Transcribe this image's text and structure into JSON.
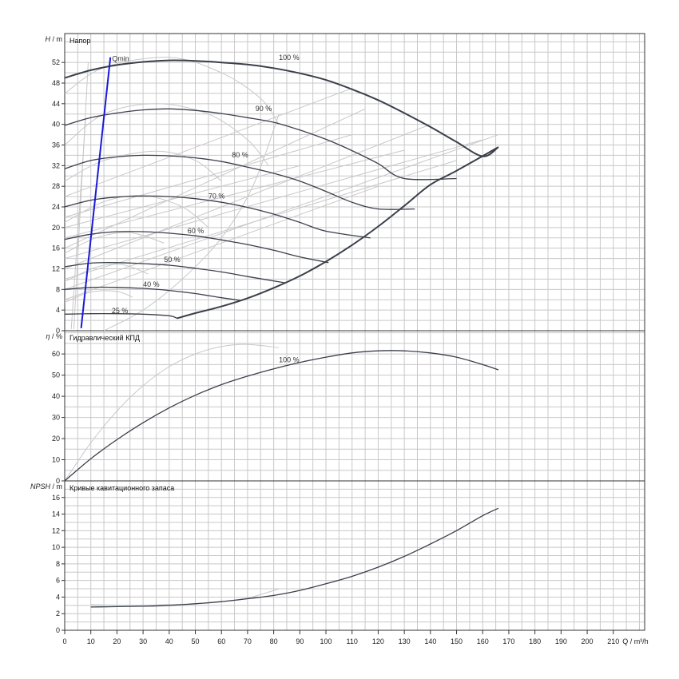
{
  "chart_data": {
    "type": "line",
    "x_axis": {
      "label": "Q / m³/h",
      "ticks": [
        0,
        10,
        20,
        30,
        40,
        50,
        60,
        70,
        80,
        90,
        100,
        110,
        120,
        130,
        140,
        150,
        160,
        170,
        180,
        190,
        200,
        210
      ],
      "xlim": [
        0,
        222
      ]
    },
    "panels": [
      {
        "id": "head",
        "title": "Напор",
        "ylabel": "H / m",
        "ylabel_symbol": "H",
        "ylabel_unit": "/ m",
        "ylim": [
          0,
          57.6
        ],
        "yticks": [
          0,
          4,
          8,
          12,
          16,
          20,
          24,
          28,
          32,
          36,
          40,
          44,
          48,
          52
        ],
        "series": [
          {
            "name": "100 %",
            "label_at": [
              82,
              52.5
            ],
            "points": [
              [
                0,
                49
              ],
              [
                10,
                50.5
              ],
              [
                20,
                51.5
              ],
              [
                30,
                52.1
              ],
              [
                40,
                52.4
              ],
              [
                50,
                52.3
              ],
              [
                60,
                52.0
              ],
              [
                70,
                51.6
              ],
              [
                80,
                50.9
              ],
              [
                90,
                49.9
              ],
              [
                100,
                48.6
              ],
              [
                110,
                46.8
              ],
              [
                120,
                44.7
              ],
              [
                130,
                42.2
              ],
              [
                140,
                39.5
              ],
              [
                150,
                36.6
              ],
              [
                160,
                33.8
              ],
              [
                166,
                35.6
              ]
            ]
          },
          {
            "name": "90 %",
            "label_at": [
              73,
              42.6
            ],
            "points": [
              [
                0,
                39.8
              ],
              [
                10,
                41.3
              ],
              [
                20,
                42.2
              ],
              [
                30,
                42.8
              ],
              [
                40,
                43.0
              ],
              [
                50,
                42.7
              ],
              [
                60,
                42.1
              ],
              [
                70,
                41.3
              ],
              [
                80,
                40.4
              ],
              [
                90,
                38.9
              ],
              [
                100,
                37.1
              ],
              [
                110,
                34.9
              ],
              [
                120,
                32.4
              ],
              [
                130,
                29.5
              ],
              [
                150,
                29.5
              ]
            ]
          },
          {
            "name": "80 %",
            "label_at": [
              64,
              33.6
            ],
            "points": [
              [
                0,
                31.4
              ],
              [
                10,
                33.0
              ],
              [
                20,
                33.7
              ],
              [
                30,
                34.0
              ],
              [
                40,
                33.9
              ],
              [
                50,
                33.5
              ],
              [
                60,
                32.8
              ],
              [
                70,
                31.7
              ],
              [
                80,
                30.5
              ],
              [
                90,
                29.0
              ],
              [
                100,
                27.0
              ],
              [
                110,
                24.9
              ],
              [
                120,
                23.6
              ],
              [
                134,
                23.6
              ]
            ]
          },
          {
            "name": "70 %",
            "label_at": [
              55,
              25.6
            ],
            "points": [
              [
                0,
                24.0
              ],
              [
                10,
                25.3
              ],
              [
                20,
                25.9
              ],
              [
                30,
                26.1
              ],
              [
                40,
                26.0
              ],
              [
                50,
                25.6
              ],
              [
                60,
                24.9
              ],
              [
                70,
                23.9
              ],
              [
                80,
                22.6
              ],
              [
                90,
                21.0
              ],
              [
                100,
                19.3
              ],
              [
                117,
                18.0
              ]
            ]
          },
          {
            "name": "60 %",
            "label_at": [
              47,
              18.9
            ],
            "points": [
              [
                0,
                17.7
              ],
              [
                10,
                18.7
              ],
              [
                20,
                19.2
              ],
              [
                30,
                19.2
              ],
              [
                40,
                18.9
              ],
              [
                50,
                18.4
              ],
              [
                60,
                17.6
              ],
              [
                70,
                16.7
              ],
              [
                80,
                15.6
              ],
              [
                90,
                14.3
              ],
              [
                101,
                13.2
              ]
            ]
          },
          {
            "name": "50 %",
            "label_at": [
              38,
              13.3
            ],
            "points": [
              [
                0,
                12.4
              ],
              [
                10,
                13.1
              ],
              [
                20,
                13.2
              ],
              [
                30,
                13.0
              ],
              [
                40,
                12.7
              ],
              [
                50,
                12.1
              ],
              [
                60,
                11.4
              ],
              [
                70,
                10.5
              ],
              [
                84,
                9.3
              ]
            ]
          },
          {
            "name": "40 %",
            "label_at": [
              30,
              8.5
            ],
            "points": [
              [
                0,
                8.0
              ],
              [
                10,
                8.4
              ],
              [
                20,
                8.4
              ],
              [
                30,
                8.2
              ],
              [
                40,
                7.8
              ],
              [
                50,
                7.2
              ],
              [
                60,
                6.4
              ],
              [
                67,
                5.9
              ]
            ]
          },
          {
            "name": "25 %",
            "label_at": [
              18,
              3.4
            ],
            "points": [
              [
                0,
                3.2
              ],
              [
                10,
                3.3
              ],
              [
                20,
                3.3
              ],
              [
                30,
                3.2
              ],
              [
                40,
                2.9
              ],
              [
                43,
                2.4
              ]
            ]
          },
          {
            "name": "",
            "points": [
              [
                43,
                2.4
              ],
              [
                50,
                3.4
              ],
              [
                60,
                4.7
              ],
              [
                70,
                6.3
              ],
              [
                80,
                8.3
              ],
              [
                90,
                10.6
              ],
              [
                100,
                13.4
              ],
              [
                110,
                16.6
              ],
              [
                120,
                20.2
              ],
              [
                130,
                24.2
              ],
              [
                140,
                28.3
              ],
              [
                150,
                31.0
              ],
              [
                166,
                35.6
              ]
            ]
          }
        ],
        "qmin": {
          "label": "Qmin",
          "points": [
            [
              6.3,
              0.5
            ],
            [
              17.5,
              53.0
            ]
          ]
        }
      },
      {
        "id": "eff",
        "title": "Гидравлический КПД",
        "ylabel": "η / %",
        "ylabel_symbol": "η",
        "ylabel_unit": "/ %",
        "ylim": [
          0,
          71
        ],
        "yticks": [
          0,
          10,
          20,
          30,
          40,
          50,
          60
        ],
        "series": [
          {
            "name": "100 %",
            "label_at": [
              82,
              56
            ],
            "points": [
              [
                0,
                0
              ],
              [
                10,
                10.5
              ],
              [
                20,
                19.5
              ],
              [
                30,
                27.5
              ],
              [
                40,
                34.5
              ],
              [
                50,
                40.5
              ],
              [
                60,
                45.5
              ],
              [
                70,
                49.5
              ],
              [
                80,
                53
              ],
              [
                90,
                56
              ],
              [
                100,
                58.5
              ],
              [
                110,
                60.5
              ],
              [
                120,
                61.5
              ],
              [
                130,
                61.5
              ],
              [
                140,
                60.5
              ],
              [
                150,
                58.5
              ],
              [
                160,
                55
              ],
              [
                166,
                52.5
              ]
            ]
          }
        ]
      },
      {
        "id": "npsh",
        "title": "Кривые кавитационного запаса",
        "ylabel": "NPSH / m",
        "ylabel_symbol": "NPSH",
        "ylabel_unit": "/ m",
        "ylim": [
          0,
          18
        ],
        "yticks": [
          0,
          2,
          4,
          6,
          8,
          10,
          12,
          14,
          16
        ],
        "series": [
          {
            "name": "",
            "points": [
              [
                10,
                2.8
              ],
              [
                20,
                2.85
              ],
              [
                30,
                2.9
              ],
              [
                40,
                3.0
              ],
              [
                50,
                3.2
              ],
              [
                60,
                3.45
              ],
              [
                70,
                3.8
              ],
              [
                80,
                4.2
              ],
              [
                90,
                4.8
              ],
              [
                100,
                5.6
              ],
              [
                110,
                6.5
              ],
              [
                120,
                7.6
              ],
              [
                130,
                8.9
              ],
              [
                140,
                10.4
              ],
              [
                150,
                12.0
              ],
              [
                160,
                13.8
              ],
              [
                166,
                14.7
              ]
            ]
          }
        ]
      }
    ],
    "style": {
      "curve_color": "#3a3f4a",
      "aux_color": "#c8c8c8",
      "qmin_color": "#1a1ad6",
      "grid_color": "#c8c8c8",
      "grid": true
    }
  }
}
